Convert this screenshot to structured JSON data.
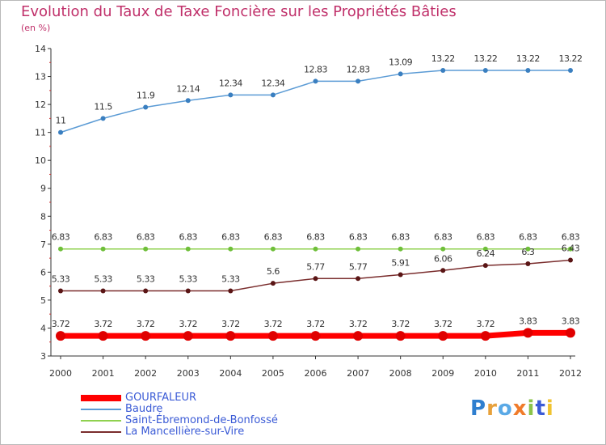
{
  "chart_data": {
    "type": "line",
    "title": "Evolution du Taux de Taxe Foncière sur les Propriétés Bâties",
    "subtitle": "(en %)",
    "xlabel": "",
    "ylabel": "",
    "ylim": [
      3,
      14
    ],
    "yticks": [
      "3",
      "4",
      "5",
      "6",
      "7",
      "8",
      "9",
      "10",
      "11",
      "12",
      "13",
      "14"
    ],
    "categories": [
      "2000",
      "2001",
      "2002",
      "2003",
      "2004",
      "2005",
      "2006",
      "2007",
      "2008",
      "2009",
      "2010",
      "2011",
      "2012"
    ],
    "legend_position": "bottom-left",
    "series": [
      {
        "name": "GOURFALEUR",
        "color": "#ff0000",
        "values": [
          3.72,
          3.72,
          3.72,
          3.72,
          3.72,
          3.72,
          3.72,
          3.72,
          3.72,
          3.72,
          3.72,
          3.83,
          3.83
        ],
        "labels": [
          "3.72",
          "3.72",
          "3.72",
          "3.72",
          "3.72",
          "3.72",
          "3.72",
          "3.72",
          "3.72",
          "3.72",
          "3.72",
          "3.83",
          "3.83"
        ]
      },
      {
        "name": "Baudre",
        "color": "#5b9bd5",
        "values": [
          11,
          11.5,
          11.9,
          12.14,
          12.34,
          12.34,
          12.83,
          12.83,
          13.09,
          13.22,
          13.22,
          13.22,
          13.22
        ],
        "labels": [
          "11",
          "11.5",
          "11.9",
          "12.14",
          "12.34",
          "12.34",
          "12.83",
          "12.83",
          "13.09",
          "13.22",
          "13.22",
          "13.22",
          "13.22"
        ]
      },
      {
        "name": "Saint-Ébremond-de-Bonfossé",
        "color": "#8fd14f",
        "values": [
          6.83,
          6.83,
          6.83,
          6.83,
          6.83,
          6.83,
          6.83,
          6.83,
          6.83,
          6.83,
          6.83,
          6.83,
          6.83
        ],
        "labels": [
          "6.83",
          "6.83",
          "6.83",
          "6.83",
          "6.83",
          "6.83",
          "6.83",
          "6.83",
          "6.83",
          "6.83",
          "6.83",
          "6.83",
          "6.83"
        ]
      },
      {
        "name": "La Mancellière-sur-Vire",
        "color": "#7a2d2d",
        "values": [
          5.33,
          5.33,
          5.33,
          5.33,
          5.33,
          5.6,
          5.77,
          5.77,
          5.91,
          6.06,
          6.24,
          6.3,
          6.43
        ],
        "labels": [
          "5.33",
          "5.33",
          "5.33",
          "5.33",
          "5.33",
          "5.6",
          "5.77",
          "5.77",
          "5.91",
          "6.06",
          "6.24",
          "6.3",
          "6.43"
        ]
      }
    ]
  },
  "logo": {
    "text": "Proxiti",
    "letter_colors": [
      "#2f7fcf",
      "#e8a13b",
      "#5aa9e6",
      "#f07b2a",
      "#8bc34a",
      "#3b5bd6",
      "#f0c330"
    ]
  }
}
